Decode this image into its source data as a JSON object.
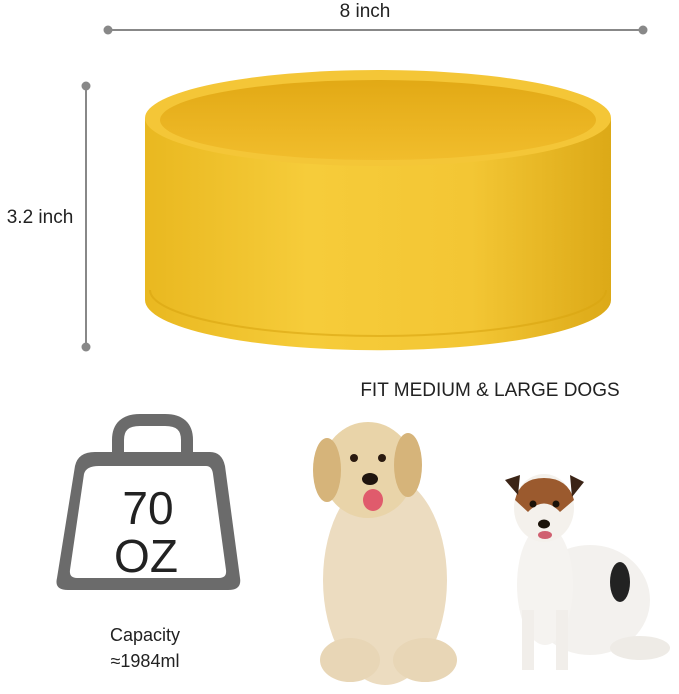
{
  "dimensions": {
    "width": "8 inch",
    "height": "3.2 inch"
  },
  "tagline": "FIT MEDIUM & LARGE DOGS",
  "weight": {
    "amount": "70",
    "unit": "OZ"
  },
  "capacity": {
    "label": "Capacity",
    "volume": "≈1984ml"
  }
}
